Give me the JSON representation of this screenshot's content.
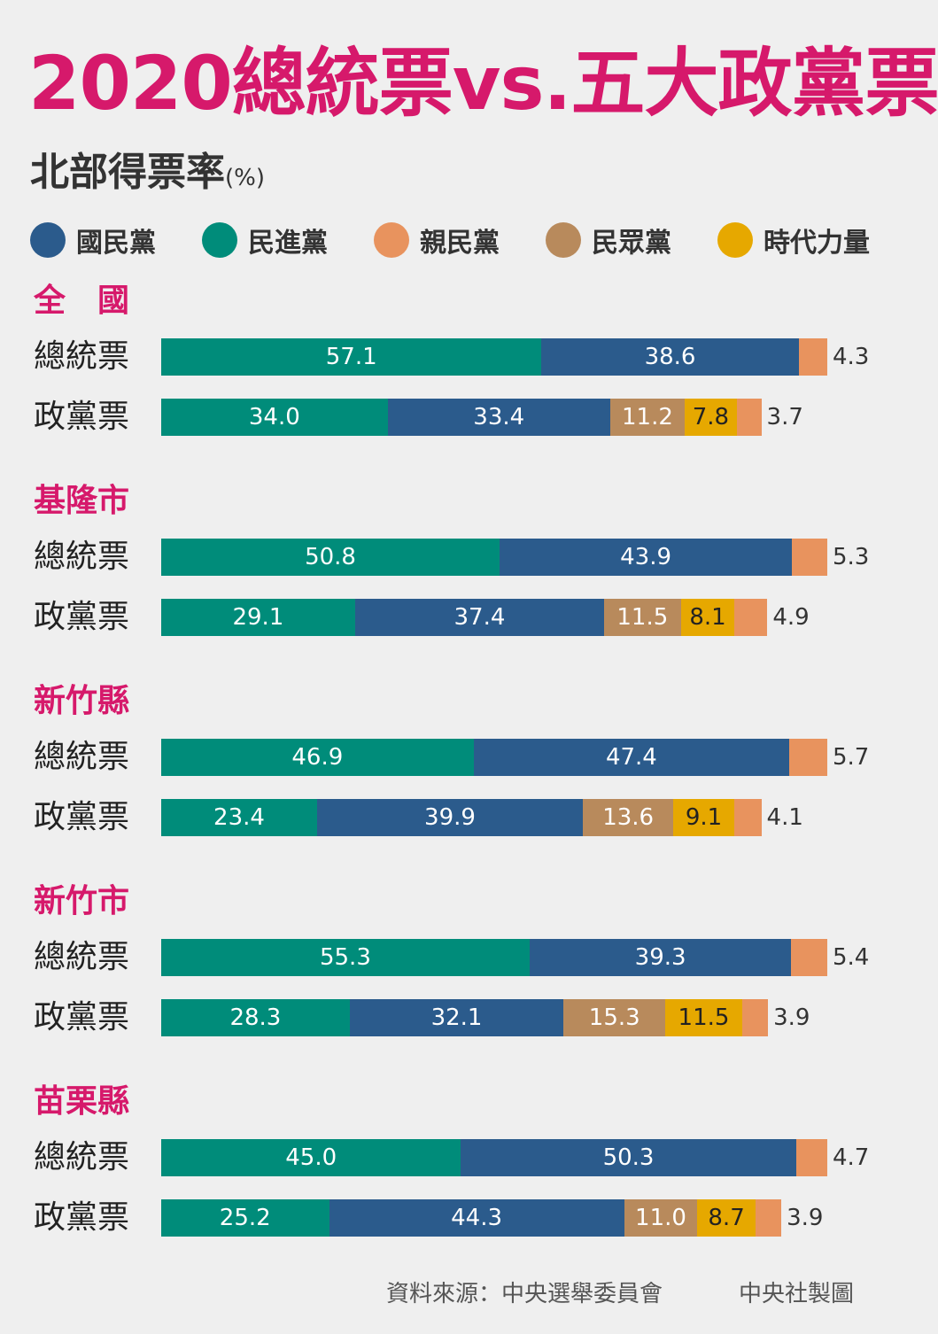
{
  "title": "2020總統票vs.五大政黨票",
  "subtitle": "北部得票率",
  "subtitle_unit": "(%)",
  "source": "資料來源：中央選舉委員會",
  "credit": "中央社製圖",
  "legend": [
    {
      "name": "國民黨",
      "color": "#2b5b8c"
    },
    {
      "name": "民進黨",
      "color": "#008c7a"
    },
    {
      "name": "親民黨",
      "color": "#e8935e"
    },
    {
      "name": "民眾黨",
      "color": "#b88a5c"
    },
    {
      "name": "時代力量",
      "color": "#e6a800"
    }
  ],
  "chart_data": {
    "type": "bar",
    "orientation": "horizontal-stacked",
    "unit": "%",
    "groups": [
      {
        "region": "全　國",
        "rows": [
          {
            "label": "總統票",
            "segments": [
              {
                "party": "民進黨",
                "value": 57.1
              },
              {
                "party": "國民黨",
                "value": 38.6
              },
              {
                "party": "親民黨",
                "value": 4.3
              }
            ]
          },
          {
            "label": "政黨票",
            "segments": [
              {
                "party": "民進黨",
                "value": 34.0
              },
              {
                "party": "國民黨",
                "value": 33.4
              },
              {
                "party": "民眾黨",
                "value": 11.2
              },
              {
                "party": "時代力量",
                "value": 7.8
              },
              {
                "party": "親民黨",
                "value": 3.7
              }
            ]
          }
        ]
      },
      {
        "region": "基隆市",
        "rows": [
          {
            "label": "總統票",
            "segments": [
              {
                "party": "民進黨",
                "value": 50.8
              },
              {
                "party": "國民黨",
                "value": 43.9
              },
              {
                "party": "親民黨",
                "value": 5.3
              }
            ]
          },
          {
            "label": "政黨票",
            "segments": [
              {
                "party": "民進黨",
                "value": 29.1
              },
              {
                "party": "國民黨",
                "value": 37.4
              },
              {
                "party": "民眾黨",
                "value": 11.5
              },
              {
                "party": "時代力量",
                "value": 8.1
              },
              {
                "party": "親民黨",
                "value": 4.9
              }
            ]
          }
        ]
      },
      {
        "region": "新竹縣",
        "rows": [
          {
            "label": "總統票",
            "segments": [
              {
                "party": "民進黨",
                "value": 46.9
              },
              {
                "party": "國民黨",
                "value": 47.4
              },
              {
                "party": "親民黨",
                "value": 5.7
              }
            ]
          },
          {
            "label": "政黨票",
            "segments": [
              {
                "party": "民進黨",
                "value": 23.4
              },
              {
                "party": "國民黨",
                "value": 39.9
              },
              {
                "party": "民眾黨",
                "value": 13.6
              },
              {
                "party": "時代力量",
                "value": 9.1
              },
              {
                "party": "親民黨",
                "value": 4.1
              }
            ]
          }
        ]
      },
      {
        "region": "新竹市",
        "rows": [
          {
            "label": "總統票",
            "segments": [
              {
                "party": "民進黨",
                "value": 55.3
              },
              {
                "party": "國民黨",
                "value": 39.3
              },
              {
                "party": "親民黨",
                "value": 5.4
              }
            ]
          },
          {
            "label": "政黨票",
            "segments": [
              {
                "party": "民進黨",
                "value": 28.3
              },
              {
                "party": "國民黨",
                "value": 32.1
              },
              {
                "party": "民眾黨",
                "value": 15.3
              },
              {
                "party": "時代力量",
                "value": 11.5
              },
              {
                "party": "親民黨",
                "value": 3.9
              }
            ]
          }
        ]
      },
      {
        "region": "苗栗縣",
        "rows": [
          {
            "label": "總統票",
            "segments": [
              {
                "party": "民進黨",
                "value": 45.0
              },
              {
                "party": "國民黨",
                "value": 50.3
              },
              {
                "party": "親民黨",
                "value": 4.7
              }
            ]
          },
          {
            "label": "政黨票",
            "segments": [
              {
                "party": "民進黨",
                "value": 25.2
              },
              {
                "party": "國民黨",
                "value": 44.3
              },
              {
                "party": "民眾黨",
                "value": 11.0
              },
              {
                "party": "時代力量",
                "value": 8.7
              },
              {
                "party": "親民黨",
                "value": 3.9
              }
            ]
          }
        ]
      }
    ]
  }
}
